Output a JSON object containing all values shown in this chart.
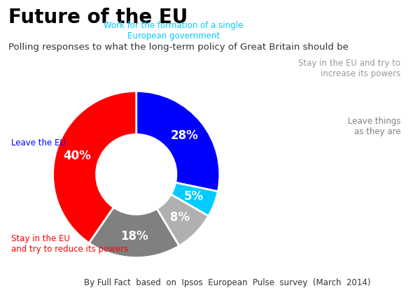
{
  "title": "Future of the EU",
  "subtitle": "Polling responses to what the long-term policy of Great Britain should be",
  "footer": "By Full Fact  based  on  Ipsos  European  Pulse  survey  (March  2014)",
  "slices": [
    {
      "label": "Leave the EU",
      "value": 28,
      "color": "#0000ff",
      "pct_color": "white",
      "label_color": "#0000ff"
    },
    {
      "label": "Work for the formation of a single\nEuropean government",
      "value": 5,
      "color": "#00ccff",
      "pct_color": "white",
      "label_color": "#00ccff"
    },
    {
      "label": "Stay in the EU and try to\nincrease its powers",
      "value": 8,
      "color": "#b0b0b0",
      "pct_color": "white",
      "label_color": "#999999"
    },
    {
      "label": "Leave things\nas they are",
      "value": 18,
      "color": "#808080",
      "pct_color": "white",
      "label_color": "#808080"
    },
    {
      "label": "Stay in the EU\nand try to reduce its powers",
      "value": 40,
      "color": "#ff0000",
      "pct_color": "white",
      "label_color": "#ff0000"
    }
  ],
  "title_fontsize": 20,
  "subtitle_fontsize": 9.5,
  "footer_fontsize": 8.5,
  "pct_fontsize": 12,
  "label_fontsize": 8.5,
  "background_color": "#ffffff",
  "startangle": 90,
  "donut_width": 0.52
}
